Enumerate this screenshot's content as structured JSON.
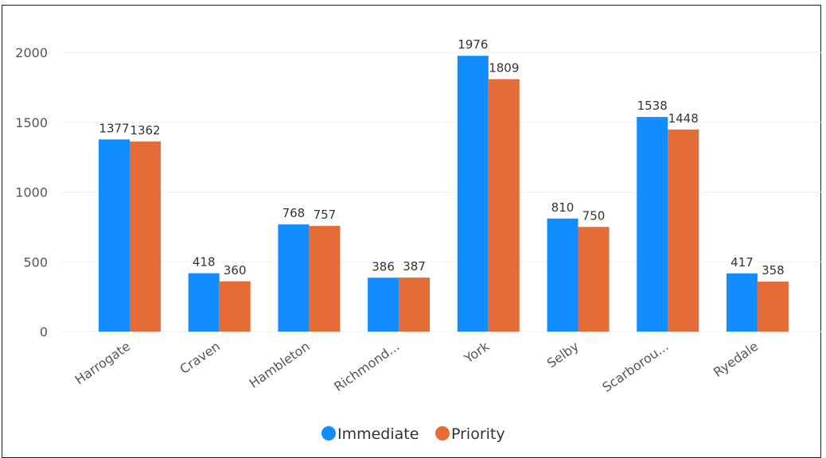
{
  "chart_data": {
    "type": "bar",
    "categories": [
      "Harrogate",
      "Craven",
      "Hambleton",
      "Richmond...",
      "York",
      "Selby",
      "Scarborou...",
      "Ryedale"
    ],
    "series": [
      {
        "name": "Immediate",
        "values": [
          1377,
          418,
          768,
          386,
          1976,
          810,
          1538,
          417
        ],
        "color": "#118dff"
      },
      {
        "name": "Priority",
        "values": [
          1362,
          360,
          757,
          387,
          1809,
          750,
          1448,
          358
        ],
        "color": "#e66c37"
      }
    ],
    "y_ticks": [
      "0",
      "500",
      "1000",
      "1500",
      "2000"
    ],
    "ylim": [
      0,
      2000
    ],
    "grid": true,
    "legend_position": "bottom-center",
    "title": "",
    "xlabel": "",
    "ylabel": ""
  }
}
